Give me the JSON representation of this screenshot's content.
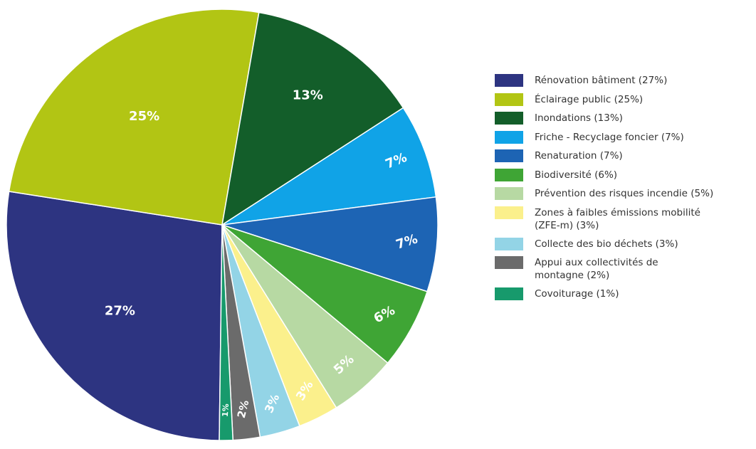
{
  "chart_data": {
    "type": "pie",
    "slices": [
      {
        "label": "Rénovation bâtiment (27%)",
        "value": 27,
        "display": "27%",
        "color": "#2d3481",
        "label_color": "#ffffff"
      },
      {
        "label": "Éclairage public (25%)",
        "value": 25,
        "display": "25%",
        "color": "#b2c514",
        "label_color": "#ffffff"
      },
      {
        "label": "Inondations (13%)",
        "value": 13,
        "display": "13%",
        "color": "#135e2a",
        "label_color": "#ffffff"
      },
      {
        "label": "Friche - Recyclage foncier (7%)",
        "value": 7,
        "display": "7%",
        "color": "#10a3e7",
        "label_color": "#ffffff"
      },
      {
        "label": "Renaturation (7%)",
        "value": 7,
        "display": "7%",
        "color": "#1d64b4",
        "label_color": "#ffffff"
      },
      {
        "label": "Biodiversité (6%)",
        "value": 6,
        "display": "6%",
        "color": "#3fa535",
        "label_color": "#ffffff"
      },
      {
        "label": "Prévention des risques incendie (5%)",
        "value": 5,
        "display": "5%",
        "color": "#b7d9a3",
        "label_color": "#ffffff"
      },
      {
        "label": "Zones à faibles émissions mobilité (ZFE-m) (3%)",
        "value": 3,
        "display": "3%",
        "color": "#fbf08c",
        "label_color": "#c8c8c8"
      },
      {
        "label": "Collecte des bio déchets (3%)",
        "value": 3,
        "display": "3%",
        "color": "#93d4e6",
        "label_color": "#ffffff"
      },
      {
        "label": "Appui aux collectivités de montagne (2%)",
        "value": 2,
        "display": "2%",
        "color": "#6b6b6b",
        "label_color": "#ffffff"
      },
      {
        "label": "Covoiturage (1%)",
        "value": 1,
        "display": "1%",
        "color": "#179a6c",
        "label_color": "#ffffff"
      }
    ],
    "legend": {
      "placement": "right",
      "items": [
        {
          "lines": [
            "Rénovation bâtiment (27%)"
          ],
          "color": "#2d3481"
        },
        {
          "lines": [
            "Éclairage public (25%)"
          ],
          "color": "#b2c514"
        },
        {
          "lines": [
            "Inondations (13%)"
          ],
          "color": "#135e2a"
        },
        {
          "lines": [
            "Friche - Recyclage foncier (7%)"
          ],
          "color": "#10a3e7"
        },
        {
          "lines": [
            "Renaturation (7%)"
          ],
          "color": "#1d64b4"
        },
        {
          "lines": [
            "Biodiversité (6%)"
          ],
          "color": "#3fa535"
        },
        {
          "lines": [
            "Prévention des risques incendie (5%)"
          ],
          "color": "#b7d9a3"
        },
        {
          "lines": [
            "Zones à faibles émissions mobilité",
            "(ZFE-m) (3%)"
          ],
          "color": "#fbf08c"
        },
        {
          "lines": [
            "Collecte des bio déchets (3%)"
          ],
          "color": "#93d4e6"
        },
        {
          "lines": [
            "Appui aux collectivités de",
            "montagne (2%)"
          ],
          "color": "#6b6b6b"
        },
        {
          "lines": [
            "Covoiturage (1%)"
          ],
          "color": "#179a6c"
        }
      ]
    }
  }
}
